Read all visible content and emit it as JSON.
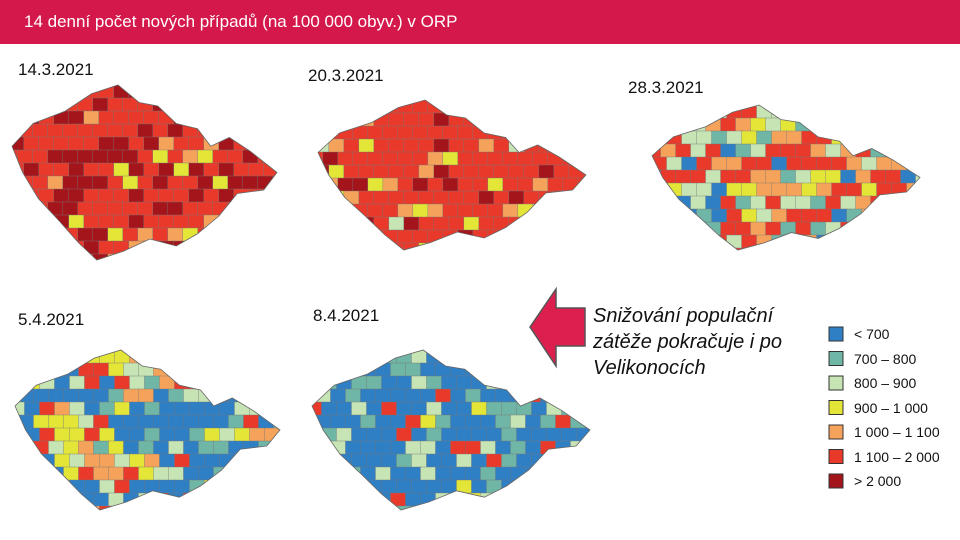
{
  "header": {
    "title": "14 denní počet nových případů (na 100 000 obyv.) v ORP"
  },
  "maps": [
    {
      "date": "14.3.2021"
    },
    {
      "date": "20.3.2021"
    },
    {
      "date": "28.3.2021"
    },
    {
      "date": "5.4.2021"
    },
    {
      "date": "8.4.2021"
    }
  ],
  "note": "Snižování populační zátěže pokračuje i po Velikonocích",
  "legend": [
    {
      "label": "< 700",
      "color": "#2f7fc5"
    },
    {
      "label": "700 – 800",
      "color": "#6fb6a6"
    },
    {
      "label": "800 – 900",
      "color": "#c6e4b4"
    },
    {
      "label": "900 – 1 000",
      "color": "#e3e636"
    },
    {
      "label": "1 000 – 1 100",
      "color": "#f5a35a"
    },
    {
      "label": "1 100 – 2 000",
      "color": "#e8392b"
    },
    {
      "label": "> 2 000",
      "color": "#a3141b"
    }
  ]
}
